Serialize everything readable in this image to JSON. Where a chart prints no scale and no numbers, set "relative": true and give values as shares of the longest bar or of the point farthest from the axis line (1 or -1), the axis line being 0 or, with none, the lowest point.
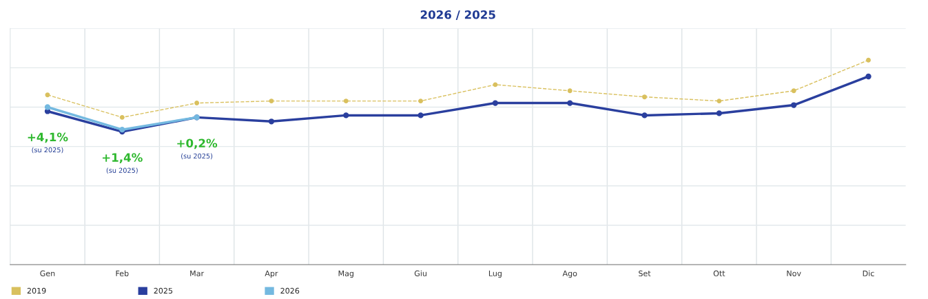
{
  "chart_data": {
    "type": "line",
    "title": "2026 / 2025",
    "relative": true,
    "grid": true,
    "legend": "bottom left",
    "marker": "circle",
    "categories": [
      "Gen",
      "Feb",
      "Mar",
      "Apr",
      "Mag",
      "Giu",
      "Lug",
      "Ago",
      "Set",
      "Ott",
      "Nov",
      "Dic"
    ],
    "series": [
      {
        "name": "2019",
        "color": "#d9c05e",
        "line_style": "dashed",
        "values": [
          0.83,
          0.72,
          0.79,
          0.8,
          0.8,
          0.8,
          0.88,
          0.85,
          0.82,
          0.8,
          0.85,
          1.0
        ]
      },
      {
        "name": "2025",
        "color": "#2a3f9e",
        "line_style": "solid",
        "values": [
          0.75,
          0.65,
          0.72,
          0.7,
          0.73,
          0.73,
          0.79,
          0.79,
          0.73,
          0.74,
          0.78,
          0.92
        ]
      },
      {
        "name": "2026",
        "color": "#74b9e0",
        "line_style": "solid",
        "values": [
          0.77,
          0.66,
          0.72,
          null,
          null,
          null,
          null,
          null,
          null,
          null,
          null,
          null
        ]
      }
    ],
    "annotations": [
      "+4,1%",
      "(su 2025)",
      "+1,4%",
      "(su 2025)",
      "+0,2%",
      "(su 2025)"
    ]
  }
}
